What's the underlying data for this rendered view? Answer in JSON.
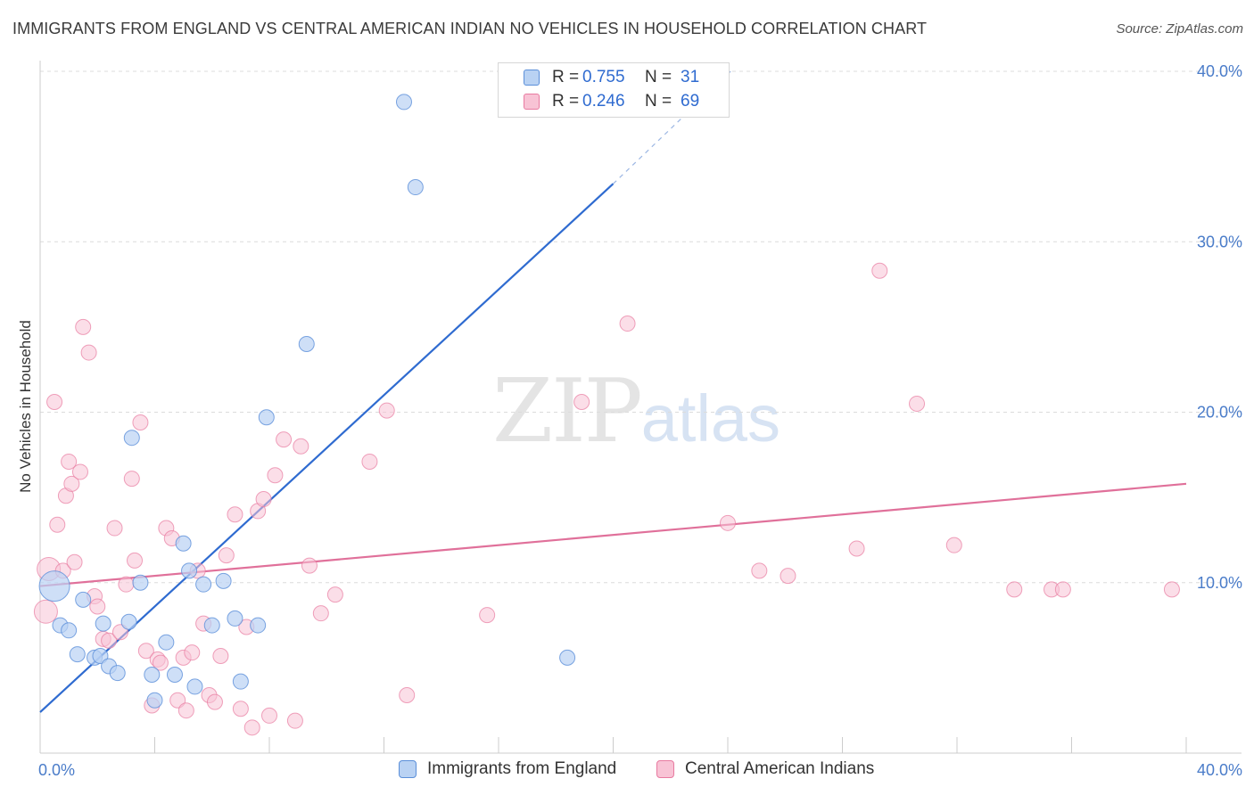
{
  "header": {
    "title": "IMMIGRANTS FROM ENGLAND VS CENTRAL AMERICAN INDIAN NO VEHICLES IN HOUSEHOLD CORRELATION CHART",
    "source": "Source: ZipAtlas.com"
  },
  "legend": {
    "r_label": "R =",
    "n_label": "N =",
    "england": {
      "r": "0.755",
      "n": "31"
    },
    "central": {
      "r": "0.246",
      "n": "69"
    }
  },
  "watermark": {
    "zip": "ZIP",
    "atlas": "atlas"
  },
  "chart_data": {
    "type": "scatter",
    "title": "IMMIGRANTS FROM ENGLAND VS CENTRAL AMERICAN INDIAN NO VEHICLES IN HOUSEHOLD CORRELATION CHART",
    "xlabel": "",
    "ylabel": "No Vehicles in Household",
    "xlim": [
      0,
      40
    ],
    "ylim": [
      0,
      40
    ],
    "x_tick_labels": [
      "0.0%",
      "40.0%"
    ],
    "y_tick_labels": [
      "10.0%",
      "20.0%",
      "30.0%",
      "40.0%"
    ],
    "y_ticks": [
      10,
      20,
      30,
      40
    ],
    "grid": true,
    "legend_position": "top-center",
    "colors": {
      "england": "#5b8fd9",
      "england_fill": "#b9d2f3",
      "central": "#e87aa0",
      "central_fill": "#f8c3d5"
    },
    "series": [
      {
        "name": "Immigrants from England",
        "x": [
          0.5,
          0.7,
          1.0,
          1.3,
          1.5,
          1.9,
          2.1,
          2.2,
          2.4,
          2.7,
          3.1,
          3.2,
          3.5,
          3.9,
          4.0,
          4.4,
          4.7,
          5.0,
          5.2,
          5.4,
          5.7,
          6.0,
          6.4,
          6.8,
          7.0,
          7.6,
          7.9,
          9.3,
          12.7,
          13.1,
          18.4
        ],
        "y": [
          9.8,
          7.5,
          7.2,
          5.8,
          9.0,
          5.6,
          5.7,
          7.6,
          5.1,
          4.7,
          7.7,
          18.5,
          10.0,
          4.6,
          3.1,
          6.5,
          4.6,
          12.3,
          10.7,
          3.9,
          9.9,
          7.5,
          10.1,
          7.9,
          4.2,
          7.5,
          19.7,
          24.0,
          38.2,
          33.2,
          5.6
        ]
      },
      {
        "name": "Central American Indians",
        "x": [
          0.2,
          0.3,
          0.5,
          0.6,
          0.8,
          0.9,
          1.0,
          1.1,
          1.2,
          1.4,
          1.5,
          1.7,
          1.9,
          2.0,
          2.2,
          2.4,
          2.6,
          2.8,
          3.0,
          3.2,
          3.3,
          3.5,
          3.7,
          3.9,
          4.1,
          4.2,
          4.4,
          4.6,
          4.8,
          5.0,
          5.1,
          5.3,
          5.5,
          5.7,
          5.9,
          6.1,
          6.3,
          6.5,
          6.8,
          7.0,
          7.2,
          7.4,
          7.6,
          7.8,
          8.0,
          8.2,
          8.5,
          8.9,
          9.1,
          9.4,
          9.8,
          10.3,
          11.5,
          12.1,
          12.8,
          15.6,
          18.9,
          20.5,
          24.0,
          25.1,
          26.1,
          28.5,
          29.3,
          30.6,
          31.9,
          34.0,
          35.3,
          35.7,
          39.5
        ],
        "y": [
          8.3,
          10.8,
          20.6,
          13.4,
          10.7,
          15.1,
          17.1,
          15.8,
          11.2,
          16.5,
          25.0,
          23.5,
          9.2,
          8.6,
          6.7,
          6.6,
          13.2,
          7.1,
          9.9,
          16.1,
          11.3,
          19.4,
          6.0,
          2.8,
          5.5,
          5.3,
          13.2,
          12.6,
          3.1,
          5.6,
          2.5,
          5.9,
          10.7,
          7.6,
          3.4,
          3.0,
          5.7,
          11.6,
          14.0,
          2.6,
          7.4,
          1.5,
          14.2,
          14.9,
          2.2,
          16.3,
          18.4,
          1.9,
          18.0,
          11.0,
          8.2,
          9.3,
          17.1,
          20.1,
          3.4,
          8.1,
          20.6,
          25.2,
          13.5,
          10.7,
          10.4,
          12.0,
          28.3,
          20.5,
          12.2,
          9.6,
          9.6,
          9.6,
          9.6
        ],
        "sizes_note": "large marker at x≈0.2 cluster"
      }
    ],
    "trendlines": [
      {
        "series": "Immigrants from England",
        "x": [
          0,
          20
        ],
        "y": [
          2.4,
          33.4
        ],
        "extended_dashed_to": [
          24.1,
          40.0
        ]
      },
      {
        "series": "Central American Indians",
        "x": [
          0,
          40
        ],
        "y": [
          9.8,
          15.8
        ]
      }
    ]
  },
  "bottom_legend": {
    "england": "Immigrants from England",
    "central": "Central American Indians"
  }
}
